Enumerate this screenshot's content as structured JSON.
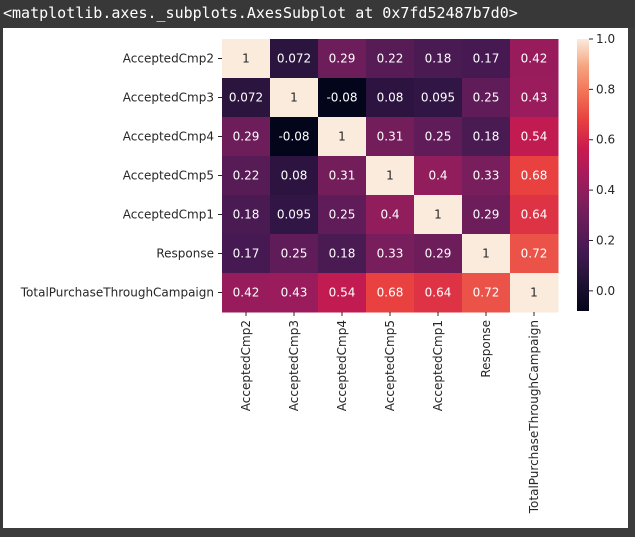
{
  "output": {
    "text": "<matplotlib.axes._subplots.AxesSubplot at 0x7fd52487b7d0>"
  },
  "chart_data": {
    "type": "heatmap",
    "title": "",
    "xlabel": "",
    "ylabel": "",
    "rows": [
      "AcceptedCmp2",
      "AcceptedCmp3",
      "AcceptedCmp4",
      "AcceptedCmp5",
      "AcceptedCmp1",
      "Response",
      "TotalPurchaseThroughCampaign"
    ],
    "columns": [
      "AcceptedCmp2",
      "AcceptedCmp3",
      "AcceptedCmp4",
      "AcceptedCmp5",
      "AcceptedCmp1",
      "Response",
      "TotalPurchaseThroughCampaign"
    ],
    "values": [
      [
        1,
        0.072,
        0.29,
        0.22,
        0.18,
        0.17,
        0.42
      ],
      [
        0.072,
        1,
        -0.08,
        0.08,
        0.095,
        0.25,
        0.43
      ],
      [
        0.29,
        -0.08,
        1,
        0.31,
        0.25,
        0.18,
        0.54
      ],
      [
        0.22,
        0.08,
        0.31,
        1,
        0.4,
        0.33,
        0.68
      ],
      [
        0.18,
        0.095,
        0.25,
        0.4,
        1,
        0.29,
        0.64
      ],
      [
        0.17,
        0.25,
        0.18,
        0.33,
        0.29,
        1,
        0.72
      ],
      [
        0.42,
        0.43,
        0.54,
        0.68,
        0.64,
        0.72,
        1
      ]
    ],
    "value_labels": [
      [
        "1",
        "0.072",
        "0.29",
        "0.22",
        "0.18",
        "0.17",
        "0.42"
      ],
      [
        "0.072",
        "1",
        "-0.08",
        "0.08",
        "0.095",
        "0.25",
        "0.43"
      ],
      [
        "0.29",
        "-0.08",
        "1",
        "0.31",
        "0.25",
        "0.18",
        "0.54"
      ],
      [
        "0.22",
        "0.08",
        "0.31",
        "1",
        "0.4",
        "0.33",
        "0.68"
      ],
      [
        "0.18",
        "0.095",
        "0.25",
        "0.4",
        "1",
        "0.29",
        "0.64"
      ],
      [
        "0.17",
        "0.25",
        "0.18",
        "0.33",
        "0.29",
        "1",
        "0.72"
      ],
      [
        "0.42",
        "0.43",
        "0.54",
        "0.68",
        "0.64",
        "0.72",
        "1"
      ]
    ],
    "colormap": "rocket",
    "vmin": -0.08,
    "vmax": 1.0,
    "colorbar": {
      "ticks": [
        1.0,
        0.8,
        0.6,
        0.4,
        0.2,
        0.0
      ],
      "tick_labels": [
        "1.0",
        "0.8",
        "0.6",
        "0.4",
        "0.2",
        "0.0"
      ],
      "placement": "right"
    },
    "grid": false
  }
}
